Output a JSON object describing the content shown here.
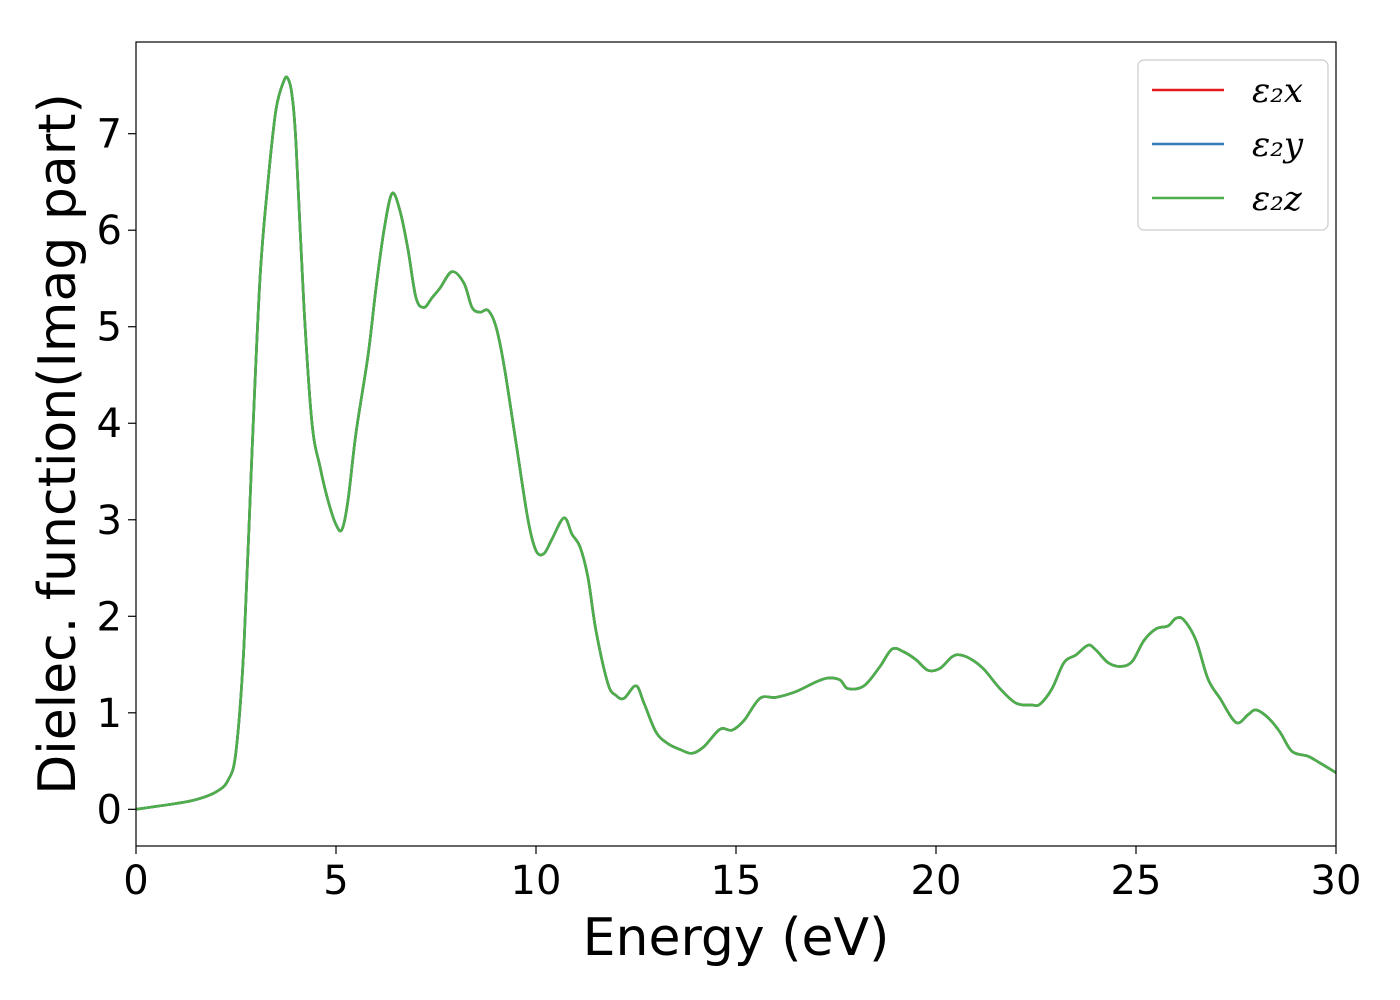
{
  "chart_data": {
    "type": "line",
    "xlabel": "Energy (eV)",
    "ylabel": "Dielec. function(Imag part)",
    "xlim": [
      0,
      30
    ],
    "ylim": [
      -0.38,
      7.95
    ],
    "xticks": [
      0,
      5,
      10,
      15,
      20,
      25,
      30
    ],
    "yticks": [
      0,
      1,
      2,
      3,
      4,
      5,
      6,
      7
    ],
    "grid": false,
    "legend_position": "top-right",
    "x": [
      0,
      0.5,
      1.0,
      1.5,
      2.0,
      2.3,
      2.5,
      2.7,
      2.9,
      3.1,
      3.3,
      3.5,
      3.7,
      3.8,
      3.9,
      4.0,
      4.2,
      4.4,
      4.6,
      4.8,
      5.0,
      5.15,
      5.3,
      5.5,
      5.8,
      6.0,
      6.2,
      6.4,
      6.6,
      6.8,
      7.0,
      7.2,
      7.4,
      7.6,
      7.9,
      8.2,
      8.4,
      8.6,
      8.8,
      9.0,
      9.2,
      9.5,
      9.8,
      10.0,
      10.2,
      10.4,
      10.7,
      10.9,
      11.1,
      11.3,
      11.5,
      11.8,
      12.0,
      12.2,
      12.5,
      12.7,
      13.0,
      13.3,
      13.6,
      13.9,
      14.2,
      14.6,
      14.9,
      15.2,
      15.6,
      16.0,
      16.5,
      17.0,
      17.3,
      17.6,
      17.8,
      18.2,
      18.6,
      18.9,
      19.2,
      19.5,
      19.8,
      20.1,
      20.4,
      20.6,
      20.9,
      21.2,
      21.6,
      22.0,
      22.4,
      22.6,
      22.9,
      23.2,
      23.5,
      23.8,
      24.0,
      24.3,
      24.6,
      24.9,
      25.2,
      25.5,
      25.8,
      26.0,
      26.2,
      26.5,
      26.8,
      27.1,
      27.5,
      27.8,
      28.0,
      28.3,
      28.6,
      28.9,
      29.3,
      29.6,
      30.0
    ],
    "series": [
      {
        "name": "ε₂x",
        "color": "#e41a1c",
        "y": [
          0,
          0.03,
          0.06,
          0.1,
          0.18,
          0.3,
          0.6,
          1.7,
          3.7,
          5.5,
          6.5,
          7.25,
          7.55,
          7.57,
          7.4,
          6.9,
          5.2,
          4.0,
          3.55,
          3.2,
          2.95,
          2.9,
          3.2,
          3.9,
          4.7,
          5.4,
          6.0,
          6.38,
          6.2,
          5.8,
          5.3,
          5.2,
          5.3,
          5.4,
          5.57,
          5.45,
          5.2,
          5.15,
          5.17,
          5.0,
          4.6,
          3.8,
          3.0,
          2.68,
          2.65,
          2.8,
          3.02,
          2.85,
          2.72,
          2.4,
          1.85,
          1.3,
          1.18,
          1.15,
          1.28,
          1.1,
          0.8,
          0.68,
          0.62,
          0.58,
          0.65,
          0.83,
          0.82,
          0.92,
          1.15,
          1.16,
          1.22,
          1.32,
          1.36,
          1.34,
          1.25,
          1.28,
          1.48,
          1.66,
          1.63,
          1.55,
          1.44,
          1.46,
          1.58,
          1.6,
          1.55,
          1.45,
          1.25,
          1.1,
          1.08,
          1.09,
          1.25,
          1.52,
          1.6,
          1.7,
          1.65,
          1.52,
          1.48,
          1.53,
          1.75,
          1.87,
          1.9,
          1.98,
          1.96,
          1.75,
          1.35,
          1.15,
          0.9,
          0.98,
          1.03,
          0.95,
          0.8,
          0.6,
          0.55,
          0.48,
          0.38
        ]
      },
      {
        "name": "ε₂y",
        "color": "#377eb8",
        "y": [
          0,
          0.03,
          0.06,
          0.1,
          0.18,
          0.3,
          0.6,
          1.7,
          3.7,
          5.5,
          6.5,
          7.25,
          7.55,
          7.57,
          7.4,
          6.9,
          5.2,
          4.0,
          3.55,
          3.2,
          2.95,
          2.9,
          3.2,
          3.9,
          4.7,
          5.4,
          6.0,
          6.38,
          6.2,
          5.8,
          5.3,
          5.2,
          5.3,
          5.4,
          5.57,
          5.45,
          5.2,
          5.15,
          5.17,
          5.0,
          4.6,
          3.8,
          3.0,
          2.68,
          2.65,
          2.8,
          3.02,
          2.85,
          2.72,
          2.4,
          1.85,
          1.3,
          1.18,
          1.15,
          1.28,
          1.1,
          0.8,
          0.68,
          0.62,
          0.58,
          0.65,
          0.83,
          0.82,
          0.92,
          1.15,
          1.16,
          1.22,
          1.32,
          1.36,
          1.34,
          1.25,
          1.28,
          1.48,
          1.66,
          1.63,
          1.55,
          1.44,
          1.46,
          1.58,
          1.6,
          1.55,
          1.45,
          1.25,
          1.1,
          1.08,
          1.09,
          1.25,
          1.52,
          1.6,
          1.7,
          1.65,
          1.52,
          1.48,
          1.53,
          1.75,
          1.87,
          1.9,
          1.98,
          1.96,
          1.75,
          1.35,
          1.15,
          0.9,
          0.98,
          1.03,
          0.95,
          0.8,
          0.6,
          0.55,
          0.48,
          0.38
        ]
      },
      {
        "name": "ε₂z",
        "color": "#4daf4a",
        "y": [
          0,
          0.03,
          0.06,
          0.1,
          0.18,
          0.3,
          0.6,
          1.7,
          3.7,
          5.5,
          6.5,
          7.25,
          7.55,
          7.57,
          7.4,
          6.9,
          5.2,
          4.0,
          3.55,
          3.2,
          2.95,
          2.9,
          3.2,
          3.9,
          4.7,
          5.4,
          6.0,
          6.38,
          6.2,
          5.8,
          5.3,
          5.2,
          5.3,
          5.4,
          5.57,
          5.45,
          5.2,
          5.15,
          5.17,
          5.0,
          4.6,
          3.8,
          3.0,
          2.68,
          2.65,
          2.8,
          3.02,
          2.85,
          2.72,
          2.4,
          1.85,
          1.3,
          1.18,
          1.15,
          1.28,
          1.1,
          0.8,
          0.68,
          0.62,
          0.58,
          0.65,
          0.83,
          0.82,
          0.92,
          1.15,
          1.16,
          1.22,
          1.32,
          1.36,
          1.34,
          1.25,
          1.28,
          1.48,
          1.66,
          1.63,
          1.55,
          1.44,
          1.46,
          1.58,
          1.6,
          1.55,
          1.45,
          1.25,
          1.1,
          1.08,
          1.09,
          1.25,
          1.52,
          1.6,
          1.7,
          1.65,
          1.52,
          1.48,
          1.53,
          1.75,
          1.87,
          1.9,
          1.98,
          1.96,
          1.75,
          1.35,
          1.15,
          0.9,
          0.98,
          1.03,
          0.95,
          0.8,
          0.6,
          0.55,
          0.48,
          0.38
        ]
      }
    ]
  }
}
